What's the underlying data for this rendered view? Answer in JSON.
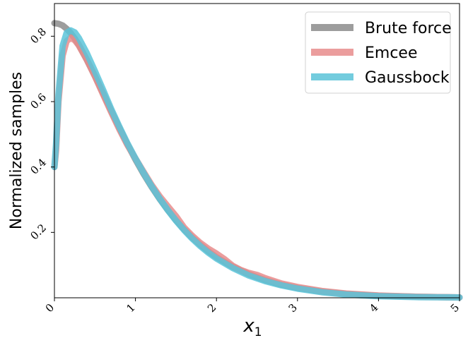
{
  "chart_data": {
    "type": "line",
    "title": "",
    "xlabel": "x",
    "xlabel_subscript": "1",
    "ylabel": "Normalized samples",
    "xlim": [
      0,
      5
    ],
    "ylim": [
      0,
      0.9
    ],
    "xticks": [
      0,
      1,
      2,
      3,
      4,
      5
    ],
    "xtick_labels": [
      "0",
      "1",
      "2",
      "3",
      "4",
      "5"
    ],
    "yticks": [
      0.2,
      0.4,
      0.6,
      0.8
    ],
    "ytick_labels": [
      "0.2",
      "0.4",
      "0.6",
      "0.8"
    ],
    "grid": false,
    "legend_position": "top-right",
    "series": [
      {
        "name": "Brute force",
        "color": "#8c8c8c",
        "x": [
          0,
          0.05,
          0.1,
          0.15,
          0.2,
          0.25,
          0.3,
          0.4,
          0.5,
          0.6,
          0.7,
          0.8,
          0.9,
          1.0,
          1.1,
          1.2,
          1.3,
          1.4,
          1.5,
          1.6,
          1.7,
          1.8,
          1.9,
          2.0,
          2.2,
          2.4,
          2.6,
          2.8,
          3.0,
          3.3,
          3.6,
          4.0,
          4.5,
          5.0
        ],
        "y": [
          0.84,
          0.838,
          0.833,
          0.823,
          0.81,
          0.793,
          0.774,
          0.728,
          0.678,
          0.625,
          0.572,
          0.52,
          0.47,
          0.423,
          0.379,
          0.339,
          0.302,
          0.268,
          0.237,
          0.209,
          0.184,
          0.162,
          0.142,
          0.124,
          0.095,
          0.072,
          0.054,
          0.04,
          0.03,
          0.019,
          0.012,
          0.006,
          0.003,
          0.001
        ]
      },
      {
        "name": "Emcee",
        "color": "#e88c8c",
        "x": [
          0,
          0.02,
          0.05,
          0.1,
          0.15,
          0.2,
          0.25,
          0.3,
          0.4,
          0.5,
          0.6,
          0.7,
          0.8,
          0.9,
          1.0,
          1.1,
          1.2,
          1.3,
          1.4,
          1.5,
          1.6,
          1.7,
          1.8,
          1.9,
          2.0,
          2.1,
          2.2,
          2.3,
          2.4,
          2.5,
          2.6,
          2.8,
          3.0,
          3.3,
          3.6,
          4.0,
          4.5,
          5.0
        ],
        "y": [
          0.4,
          0.45,
          0.6,
          0.74,
          0.785,
          0.795,
          0.788,
          0.772,
          0.728,
          0.677,
          0.622,
          0.568,
          0.516,
          0.468,
          0.426,
          0.385,
          0.345,
          0.31,
          0.28,
          0.25,
          0.215,
          0.19,
          0.168,
          0.15,
          0.135,
          0.118,
          0.098,
          0.085,
          0.076,
          0.07,
          0.06,
          0.044,
          0.033,
          0.021,
          0.013,
          0.007,
          0.003,
          0.001
        ]
      },
      {
        "name": "Gaussbock",
        "color": "#5bc4d9",
        "x": [
          0,
          0.02,
          0.05,
          0.1,
          0.15,
          0.2,
          0.25,
          0.3,
          0.4,
          0.5,
          0.6,
          0.7,
          0.8,
          0.9,
          1.0,
          1.1,
          1.2,
          1.3,
          1.4,
          1.5,
          1.6,
          1.7,
          1.8,
          1.9,
          2.0,
          2.2,
          2.4,
          2.6,
          2.8,
          3.0,
          3.3,
          3.6,
          4.0,
          4.5,
          5.0
        ],
        "y": [
          0.4,
          0.47,
          0.62,
          0.77,
          0.81,
          0.818,
          0.812,
          0.795,
          0.748,
          0.693,
          0.636,
          0.578,
          0.524,
          0.473,
          0.426,
          0.382,
          0.341,
          0.303,
          0.268,
          0.236,
          0.207,
          0.181,
          0.158,
          0.138,
          0.12,
          0.091,
          0.068,
          0.051,
          0.038,
          0.028,
          0.017,
          0.01,
          0.005,
          0.002,
          0.001
        ]
      }
    ]
  }
}
